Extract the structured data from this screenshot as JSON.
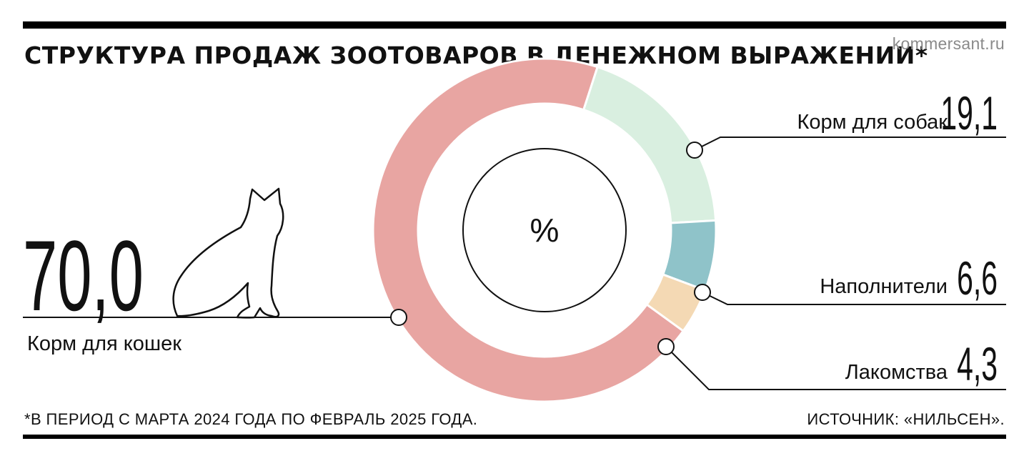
{
  "header": {
    "title": "СТРУКТУРА ПРОДАЖ ЗООТОВАРОВ В ДЕНЕЖНОМ ВЫРАЖЕНИИ*",
    "site": "kommersant.ru"
  },
  "icons": {
    "cat": "cat-silhouette-icon"
  },
  "colors": {
    "cat_food": "#e8a5a2",
    "dog_food": "#d9efe0",
    "fillers": "#8fc3c9",
    "treats": "#f4d9b4"
  },
  "chart_data": {
    "type": "pie",
    "center_label": "%",
    "slices": [
      {
        "label": "Корм для кошек",
        "value": 70.0,
        "value_text": "70,0",
        "color": "#e8a5a2"
      },
      {
        "label": "Корм для собак",
        "value": 19.1,
        "value_text": "19,1",
        "color": "#d9efe0"
      },
      {
        "label": "Наполнители",
        "value": 6.6,
        "value_text": "6,6",
        "color": "#8fc3c9"
      },
      {
        "label": "Лакомства",
        "value": 4.3,
        "value_text": "4,3",
        "color": "#f4d9b4"
      }
    ]
  },
  "footer": {
    "note": "*В ПЕРИОД С МАРТА 2024 ГОДА ПО ФЕВРАЛЬ 2025 ГОДА.",
    "source": "ИСТОЧНИК: «НИЛЬСЕН»."
  }
}
